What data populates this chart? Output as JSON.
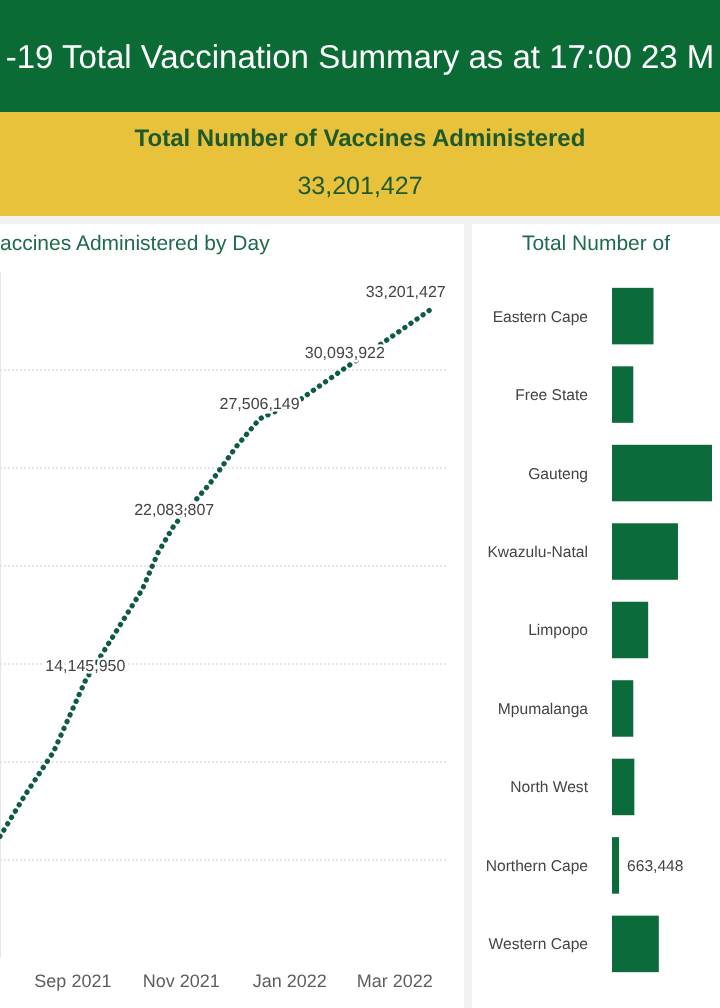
{
  "chart_data": [
    {
      "type": "other",
      "title": "-19 Total Vaccination Summary as at 17:00 23 M",
      "subtitle": "Total Number of Vaccines Administered",
      "annotations": [
        "33,201,427"
      ]
    },
    {
      "type": "line",
      "title": "accines Administered by Day",
      "color": "#0f5a45",
      "line_style": "dotted",
      "grid": "y",
      "tick_labels": "x",
      "x": [
        "2021-07-22",
        "2021-08-05",
        "2021-08-21",
        "2021-09-08",
        "2021-09-27",
        "2021-10-10",
        "2021-10-19",
        "2021-10-28",
        "2021-11-17",
        "2021-12-02",
        "2021-12-15",
        "2022-01-07",
        "2022-02-01",
        "2022-02-21",
        "2022-03-23"
      ],
      "values": [
        6200000,
        8300000,
        10500000,
        14145950,
        16900000,
        18800000,
        20700000,
        22083807,
        24200000,
        26100000,
        27506149,
        28500000,
        30093922,
        31300000,
        33201427
      ],
      "value_labels": [
        null,
        null,
        null,
        "14,145,950",
        null,
        null,
        null,
        "22,083,807",
        null,
        null,
        "27,506,149",
        null,
        "30,093,922",
        null,
        "33,201,427"
      ],
      "xlim": [
        "2021-07-22",
        "2022-03-31"
      ],
      "xticks": [
        {
          "value": "2021-09-01",
          "label": "Sep 2021"
        },
        {
          "value": "2021-11-01",
          "label": "Nov 2021"
        },
        {
          "value": "2022-01-01",
          "label": "Jan 2022"
        },
        {
          "value": "2022-03-01",
          "label": "Mar 2022"
        }
      ],
      "ylim": [
        0,
        35000000
      ],
      "yticks": [
        {
          "value": 5000000,
          "label": null
        },
        {
          "value": 10000000,
          "label": null
        },
        {
          "value": 15000000,
          "label": null
        },
        {
          "value": 20000000,
          "label": null
        },
        {
          "value": 25000000,
          "label": null
        },
        {
          "value": 30000000,
          "label": null
        }
      ]
    },
    {
      "type": "bar",
      "orientation": "horizontal",
      "title": "Total Number of",
      "color": "#0b6b3a",
      "categories": [
        "Eastern Cape",
        "Free State",
        "Gauteng",
        "Kwazulu-Natal",
        "Limpopo",
        "Mpumalanga",
        "North West",
        "Northern Cape",
        "Western Cape"
      ],
      "values": [
        3900000,
        2000000,
        9400000,
        6200000,
        3400000,
        2000000,
        2100000,
        663448,
        4400000
      ],
      "value_labels": [
        null,
        null,
        null,
        null,
        null,
        null,
        null,
        "663,448",
        null
      ]
    }
  ]
}
